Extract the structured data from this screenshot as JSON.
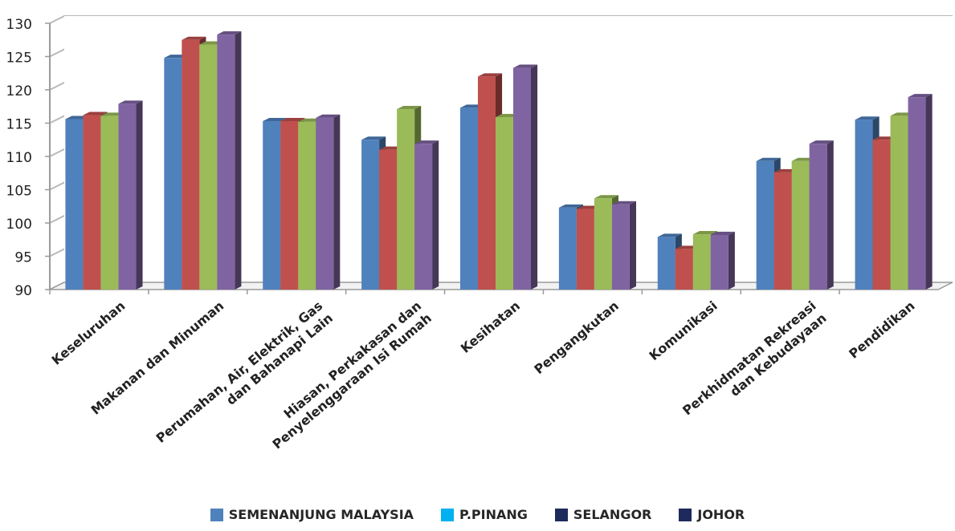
{
  "chart_data": {
    "type": "bar",
    "title": "",
    "xlabel": "",
    "ylabel": "",
    "ylim": [
      90,
      130
    ],
    "yticks": [
      90,
      95,
      100,
      105,
      110,
      115,
      120,
      125,
      130
    ],
    "grid": true,
    "three_d": true,
    "legend_position": "bottom",
    "categories": [
      [
        "Keseluruhan"
      ],
      [
        "Makanan dan Minuman"
      ],
      [
        "Perumahan, Air, Elektrik, Gas",
        "dan Bahanapi Lain"
      ],
      [
        "Hiasan, Perkakasan dan",
        "Penyelenggaraan Isi Rumah"
      ],
      [
        "Kesihatan"
      ],
      [
        "Pengangkutan"
      ],
      [
        "Komunikasi"
      ],
      [
        "Perkhidmatan Rekreasi",
        "dan Kebudayaan"
      ],
      [
        "Pendidikan"
      ]
    ],
    "series": [
      {
        "name": "SEMENANJUNG MALAYSIA",
        "color": "#4f81bd",
        "values": [
          115.6,
          124.8,
          115.3,
          112.5,
          117.3,
          102.3,
          97.9,
          109.3,
          115.5
        ]
      },
      {
        "name": "P.PINANG",
        "color": "#c0504d",
        "values": [
          116.2,
          127.5,
          115.3,
          111.0,
          122.0,
          102.1,
          96.1,
          107.6,
          112.5
        ]
      },
      {
        "name": "SELANGOR",
        "color": "#9bbb59",
        "values": [
          116.1,
          126.8,
          115.2,
          117.1,
          115.9,
          103.7,
          98.3,
          109.3,
          116.1
        ]
      },
      {
        "name": "JOHOR",
        "color": "#8064a2",
        "values": [
          117.9,
          128.3,
          115.8,
          111.9,
          123.3,
          102.8,
          98.2,
          111.9,
          118.9
        ]
      }
    ],
    "legend": [
      {
        "name": "SEMENANJUNG MALAYSIA",
        "color": "#4f81bd"
      },
      {
        "name": "P.PINANG",
        "color": "#00b0f0"
      },
      {
        "name": "SELANGOR",
        "color": "#1f2a5c"
      },
      {
        "name": "JOHOR",
        "color": "#1f2a5c"
      }
    ]
  }
}
